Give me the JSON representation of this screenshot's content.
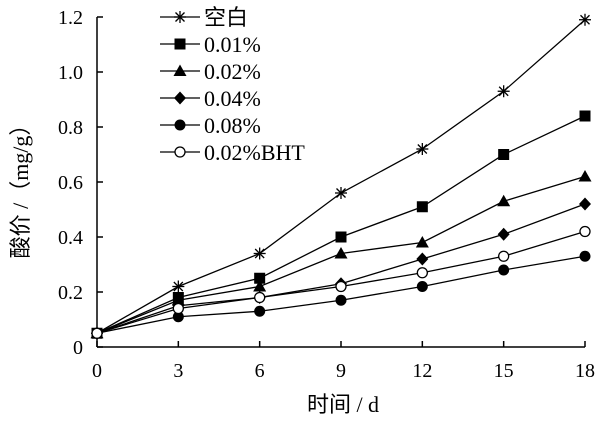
{
  "chart_data": {
    "type": "line",
    "xlabel": "时间 / d",
    "ylabel": "酸价 /（mg/g）",
    "x": [
      0,
      3,
      6,
      9,
      12,
      15,
      18
    ],
    "xlim": [
      0,
      18
    ],
    "ylim": [
      0,
      1.2
    ],
    "x_ticks": [
      "0",
      "3",
      "6",
      "9",
      "12",
      "15",
      "18"
    ],
    "y_ticks": [
      "0",
      "0.2",
      "0.4",
      "0.6",
      "0.8",
      "1.0",
      "1.2"
    ],
    "grid": false,
    "legend_position": "top-left",
    "series": [
      {
        "name": "空白",
        "marker": "asterisk",
        "values": [
          0.05,
          0.22,
          0.34,
          0.56,
          0.72,
          0.93,
          1.19
        ]
      },
      {
        "name": "0.01%",
        "marker": "square",
        "values": [
          0.05,
          0.18,
          0.25,
          0.4,
          0.51,
          0.7,
          0.84
        ]
      },
      {
        "name": "0.02%",
        "marker": "triangle",
        "values": [
          0.05,
          0.17,
          0.22,
          0.34,
          0.38,
          0.53,
          0.62
        ]
      },
      {
        "name": "0.04%",
        "marker": "diamond",
        "values": [
          0.05,
          0.15,
          0.18,
          0.23,
          0.32,
          0.41,
          0.52
        ]
      },
      {
        "name": "0.08%",
        "marker": "circle-filled",
        "values": [
          0.05,
          0.11,
          0.13,
          0.17,
          0.22,
          0.28,
          0.33
        ]
      },
      {
        "name": "0.02%BHT",
        "marker": "circle-open",
        "values": [
          0.05,
          0.14,
          0.18,
          0.22,
          0.27,
          0.33,
          0.42
        ]
      }
    ],
    "colors": {
      "line": "#000000",
      "background": "#ffffff"
    }
  }
}
